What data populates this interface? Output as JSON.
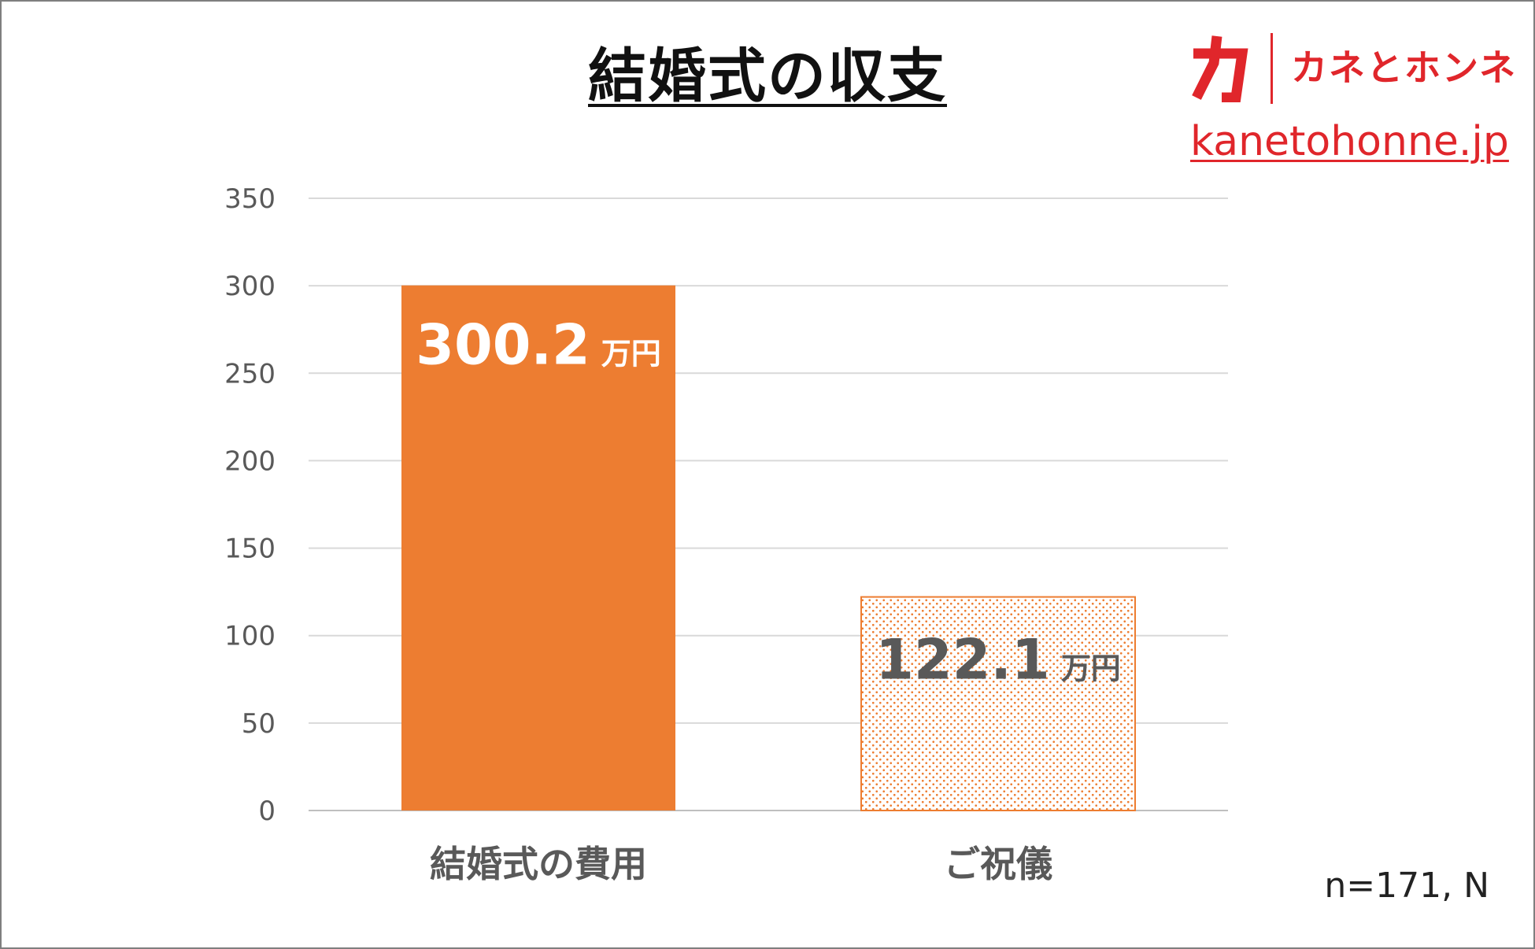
{
  "title": "結婚式の収支",
  "logo": {
    "mark_text": "カ",
    "text": "カネとホンネ",
    "url": "kanetohonne.jp",
    "color": "#e0262b"
  },
  "note": "n=171, N",
  "colors": {
    "bar_solid": "#ed7d31",
    "grid": "#d9d9d9",
    "label_dark": "#595959",
    "label_light": "#ffffff"
  },
  "chart_data": {
    "type": "bar",
    "title": "結婚式の収支",
    "categories": [
      "結婚式の費用",
      "ご祝儀"
    ],
    "values": [
      300.2,
      122.1
    ],
    "data_labels": [
      {
        "value": "300.2",
        "unit": "万円"
      },
      {
        "value": "122.1",
        "unit": "万円"
      }
    ],
    "ylim": [
      0,
      350
    ],
    "yticks": [
      "0",
      "50",
      "100",
      "150",
      "200",
      "250",
      "300",
      "350"
    ],
    "grid": true,
    "legend": "none",
    "bar_styles": [
      "solid",
      "dotted"
    ]
  }
}
